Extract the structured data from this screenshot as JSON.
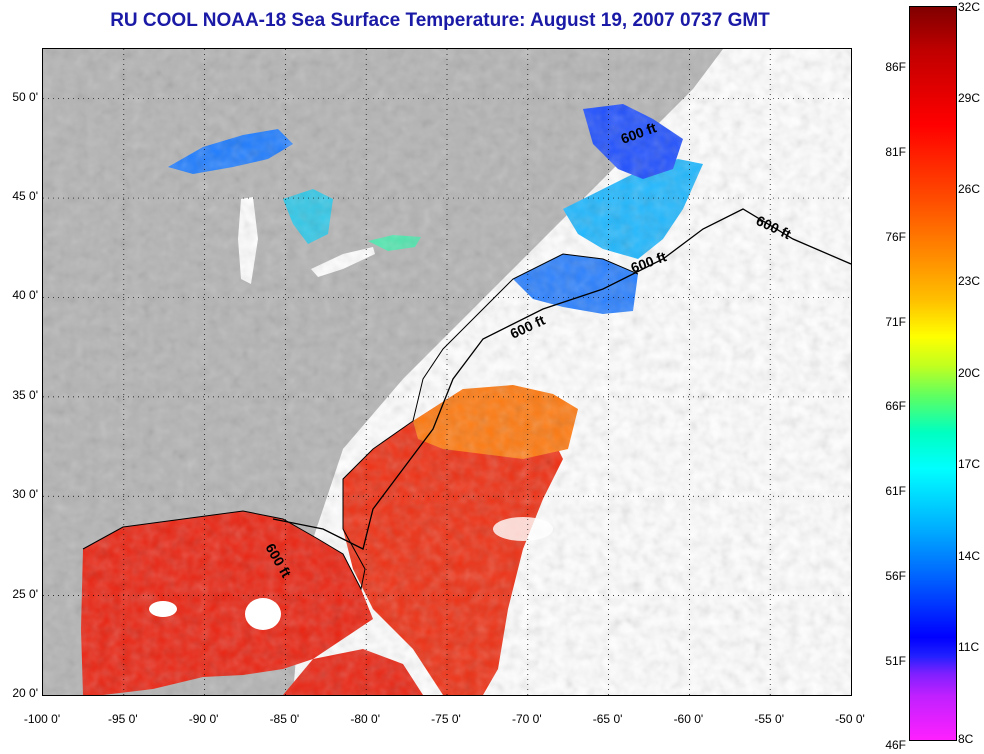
{
  "title": "RU COOL  NOAA-18  Sea Surface Temperature:  August 19, 2007 0737 GMT",
  "axes": {
    "x_labels": [
      "-100 0'",
      "-95 0'",
      "-90 0'",
      "-85 0'",
      "-80 0'",
      "-75 0'",
      "-70 0'",
      "-65 0'",
      "-60 0'",
      "-55 0'",
      "-50 0'"
    ],
    "y_labels": [
      "50 0'",
      "45 0'",
      "40 0'",
      "35 0'",
      "30 0'",
      "25 0'",
      "20 0'"
    ],
    "lon_range": [
      -100,
      -50
    ],
    "lat_range": [
      20,
      52.5
    ],
    "grid": "dotted"
  },
  "colorbar": {
    "fahrenheit_labels": [
      "86F",
      "81F",
      "76F",
      "71F",
      "66F",
      "61F",
      "56F",
      "51F",
      "46F"
    ],
    "celsius_labels": [
      "32C",
      "29C",
      "26C",
      "23C",
      "20C",
      "17C",
      "14C",
      "11C",
      "8C"
    ],
    "range_c": [
      8,
      32
    ],
    "range_f": [
      46,
      89.6
    ]
  },
  "contour_labels": [
    "600 ft",
    "600 ft",
    "600 ft",
    "600 ft",
    "600 ft"
  ],
  "colors": {
    "land": "#b4b4b4",
    "cloud": "#ffffff",
    "title": "#1a1aa6",
    "warm_sst": "#ee2a10",
    "cool_sst": "#2a7aff"
  }
}
